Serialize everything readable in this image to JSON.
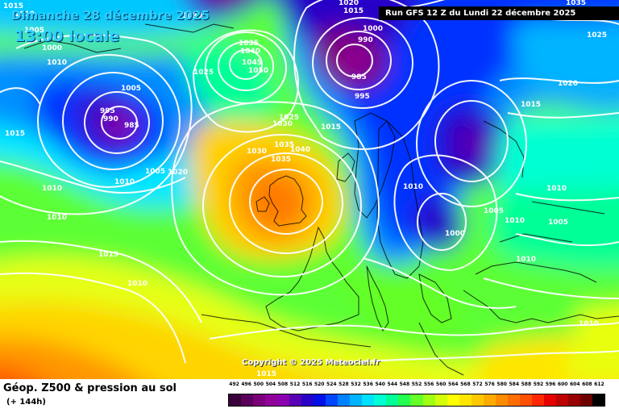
{
  "header": {
    "date_line": "Dimanche 28 décembre 2025",
    "time_line": "13:00 locale",
    "run_info": "Run GFS 12 Z du Lundi 22 décembre 2025"
  },
  "copyright": "Copyright © 2025 Meteociel.fr",
  "footer": {
    "title": "Géop. Z500 & pression au sol",
    "forecast_hour": "(+ 144h)"
  },
  "legend": {
    "values": [
      "492",
      "496",
      "500",
      "504",
      "508",
      "512",
      "516",
      "520",
      "524",
      "528",
      "532",
      "536",
      "540",
      "544",
      "548",
      "552",
      "556",
      "560",
      "564",
      "568",
      "572",
      "576",
      "580",
      "584",
      "588",
      "592",
      "596",
      "600",
      "604",
      "608",
      "612"
    ],
    "colors": [
      "#3a003a",
      "#5a005a",
      "#7a007a",
      "#92009a",
      "#8a00b0",
      "#5a00b4",
      "#2800c8",
      "#0010e6",
      "#0046ff",
      "#0082ff",
      "#00b4ff",
      "#00e0ff",
      "#00ffd2",
      "#00ff96",
      "#24ff50",
      "#64ff28",
      "#a0ff14",
      "#d2ff0a",
      "#ffff00",
      "#ffe600",
      "#ffc800",
      "#ffaa00",
      "#ff8c00",
      "#ff6e00",
      "#ff5000",
      "#ff2800",
      "#e60000",
      "#be0000",
      "#960000",
      "#6e0000",
      "#000000"
    ]
  },
  "pressure_labels": [
    {
      "text": "1015"
    },
    {
      "text": "1010"
    },
    {
      "text": "1005"
    },
    {
      "text": "1000"
    },
    {
      "text": "1010"
    },
    {
      "text": "1005"
    },
    {
      "text": "995"
    },
    {
      "text": "990"
    },
    {
      "text": "985"
    },
    {
      "text": "1015"
    },
    {
      "text": "1010"
    },
    {
      "text": "1005"
    },
    {
      "text": "1010"
    },
    {
      "text": "1010"
    },
    {
      "text": "1015"
    },
    {
      "text": "1010"
    },
    {
      "text": "1020"
    },
    {
      "text": "1025"
    },
    {
      "text": "1035"
    },
    {
      "text": "1040"
    },
    {
      "text": "1045"
    },
    {
      "text": "1050"
    },
    {
      "text": "1030"
    },
    {
      "text": "1035"
    },
    {
      "text": "1030"
    },
    {
      "text": "1025"
    },
    {
      "text": "1015"
    },
    {
      "text": "1035"
    },
    {
      "text": "1040"
    },
    {
      "text": "1030"
    },
    {
      "text": "1020"
    },
    {
      "text": "1015"
    },
    {
      "text": "1000"
    },
    {
      "text": "990"
    },
    {
      "text": "985"
    },
    {
      "text": "995"
    },
    {
      "text": "1035"
    },
    {
      "text": "1025"
    },
    {
      "text": "1020"
    },
    {
      "text": "1015"
    },
    {
      "text": "1010"
    },
    {
      "text": "1005"
    },
    {
      "text": "1000"
    },
    {
      "text": "1010"
    },
    {
      "text": "1005"
    },
    {
      "text": "1010"
    },
    {
      "text": "1010"
    },
    {
      "text": "1010"
    },
    {
      "text": "1015"
    }
  ]
}
